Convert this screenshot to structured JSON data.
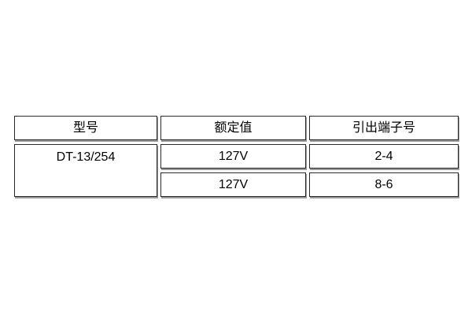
{
  "page": {
    "background_color": "#ffffff"
  },
  "table": {
    "description": "relay-specification-table",
    "colors": {
      "cell_border": "#2a2a2a",
      "cell_shadow": "#999999",
      "cell_background": "#ffffff",
      "text": "#000000"
    },
    "columns": [
      {
        "label": "型号"
      },
      {
        "label": "额定值"
      },
      {
        "label": "引出端子号"
      }
    ],
    "model": "DT-13/254",
    "rows": [
      {
        "rated_value": "127V",
        "terminal_no": "2-4"
      },
      {
        "rated_value": "127V",
        "terminal_no": "8-6"
      }
    ]
  }
}
